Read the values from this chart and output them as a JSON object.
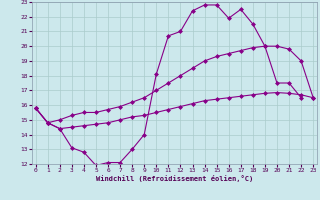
{
  "xlabel": "Windchill (Refroidissement éolien,°C)",
  "bg_color": "#cce8ec",
  "grid_color": "#aacccc",
  "line_color": "#880088",
  "xmin": 0,
  "xmax": 23,
  "ymin": 12,
  "ymax": 23,
  "line1_x": [
    0,
    1,
    2,
    3,
    4,
    5,
    6,
    7,
    8,
    9,
    10,
    11,
    12,
    13,
    14,
    15,
    16,
    17,
    18,
    19,
    20,
    21,
    22
  ],
  "line1_y": [
    15.8,
    14.8,
    14.4,
    13.1,
    12.8,
    11.9,
    12.1,
    12.1,
    13.0,
    14.0,
    18.1,
    20.7,
    21.0,
    22.4,
    22.8,
    22.8,
    21.9,
    22.5,
    21.5,
    20.0,
    17.5,
    17.5,
    16.5
  ],
  "line2_x": [
    0,
    1,
    2,
    3,
    4,
    5,
    6,
    7,
    8,
    9,
    10,
    11,
    12,
    13,
    14,
    15,
    16,
    17,
    18,
    19,
    20,
    21,
    22,
    23
  ],
  "line2_y": [
    15.8,
    14.8,
    15.0,
    15.3,
    15.5,
    15.5,
    15.7,
    15.9,
    16.2,
    16.5,
    17.0,
    17.5,
    18.0,
    18.5,
    19.0,
    19.3,
    19.5,
    19.7,
    19.9,
    20.0,
    20.0,
    19.8,
    19.0,
    16.5
  ],
  "line3_x": [
    0,
    1,
    2,
    3,
    4,
    5,
    6,
    7,
    8,
    9,
    10,
    11,
    12,
    13,
    14,
    15,
    16,
    17,
    18,
    19,
    20,
    21,
    22,
    23
  ],
  "line3_y": [
    15.8,
    14.8,
    14.4,
    14.5,
    14.6,
    14.7,
    14.8,
    15.0,
    15.2,
    15.3,
    15.5,
    15.7,
    15.9,
    16.1,
    16.3,
    16.4,
    16.5,
    16.6,
    16.7,
    16.8,
    16.85,
    16.8,
    16.7,
    16.5
  ],
  "marker": "D",
  "markersize": 2.0,
  "linewidth": 0.8
}
